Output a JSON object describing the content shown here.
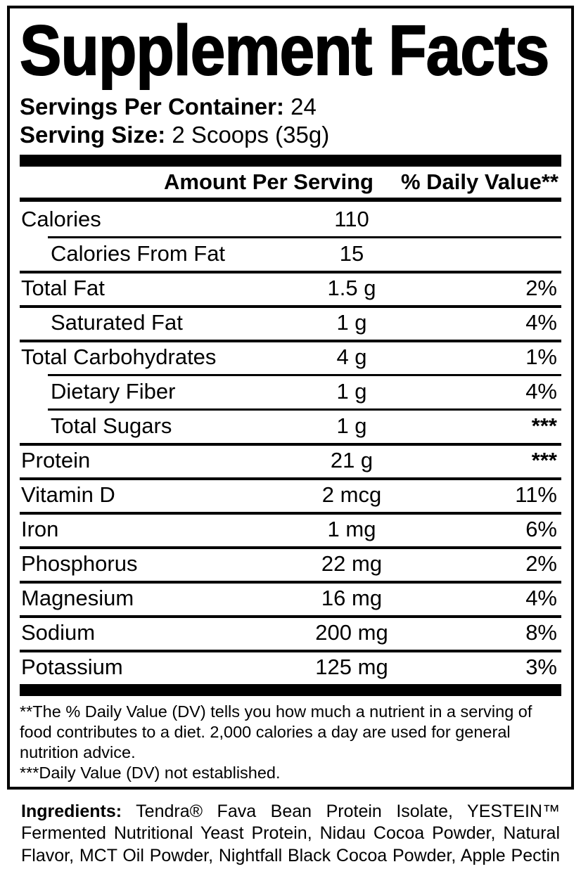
{
  "title": "Supplement Facts",
  "serving_info": {
    "servings_label": "Servings Per Container:",
    "servings_value": "24",
    "size_label": "Serving Size:",
    "size_value": "2 Scoops (35g)"
  },
  "table": {
    "amount_header": "Amount Per Serving",
    "dv_header": "% Daily Value**",
    "rows": [
      {
        "label": "Calories",
        "amount": "110",
        "dv": "",
        "indent": false,
        "sep": "none"
      },
      {
        "label": "Calories From Fat",
        "amount": "15",
        "dv": "",
        "indent": true,
        "sep": "indent"
      },
      {
        "label": "Total Fat",
        "amount": "1.5 g",
        "dv": "2%",
        "indent": false,
        "sep": "full"
      },
      {
        "label": "Saturated Fat",
        "amount": "1 g",
        "dv": "4%",
        "indent": true,
        "sep": "full"
      },
      {
        "label": "Total Carbohydrates",
        "amount": "4 g",
        "dv": "1%",
        "indent": false,
        "sep": "full"
      },
      {
        "label": "Dietary Fiber",
        "amount": "1 g",
        "dv": "4%",
        "indent": true,
        "sep": "indent"
      },
      {
        "label": "Total Sugars",
        "amount": "1 g",
        "dv": "***",
        "indent": true,
        "sep": "indent"
      },
      {
        "label": "Protein",
        "amount": "21 g",
        "dv": "***",
        "indent": false,
        "sep": "full"
      },
      {
        "label": "Vitamin D",
        "amount": "2 mcg",
        "dv": "11%",
        "indent": false,
        "sep": "full"
      },
      {
        "label": "Iron",
        "amount": "1 mg",
        "dv": "6%",
        "indent": false,
        "sep": "full"
      },
      {
        "label": "Phosphorus",
        "amount": "22 mg",
        "dv": "2%",
        "indent": false,
        "sep": "full"
      },
      {
        "label": "Magnesium",
        "amount": "16 mg",
        "dv": "4%",
        "indent": false,
        "sep": "full"
      },
      {
        "label": "Sodium",
        "amount": "200 mg",
        "dv": "8%",
        "indent": false,
        "sep": "full"
      },
      {
        "label": "Potassium",
        "amount": "125 mg",
        "dv": "3%",
        "indent": false,
        "sep": "full"
      }
    ]
  },
  "footnotes": [
    "**The % Daily Value (DV) tells you how much a nutrient in a serving of food contributes to a diet. 2,000 calories a day are used for general nutrition advice.",
    "***Daily Value (DV) not established."
  ],
  "ingredients": {
    "label": "Ingredients:",
    "text": " Tendra® Fava Bean Protein Isolate, YESTEIN™ Fermented Nutritional Yeast Protein, Nidau Cocoa Powder, Natural Flavor, MCT Oil Powder, Nightfall Black Cocoa Powder, Apple Pectin Powder, Sea Salt, Sunflower Lecithin, Stevia Extract (leaf)."
  },
  "colors": {
    "text": "#000000",
    "background": "#ffffff"
  }
}
